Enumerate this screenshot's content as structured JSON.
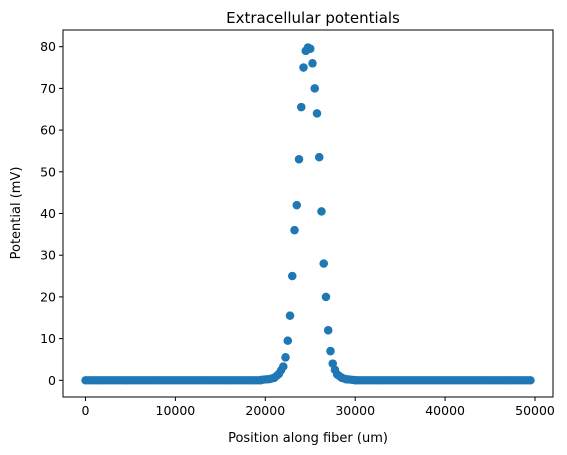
{
  "chart_data": {
    "type": "scatter",
    "title": "Extracellular potentials",
    "xlabel": "Position along fiber (um)",
    "ylabel": "Potential (mV)",
    "xlim": [
      -2500,
      52000
    ],
    "ylim": [
      -4,
      84
    ],
    "xticks": [
      0,
      10000,
      20000,
      30000,
      40000,
      50000
    ],
    "xtick_labels": [
      "0",
      "10000",
      "20000",
      "30000",
      "40000",
      "50000"
    ],
    "yticks": [
      0,
      10,
      20,
      30,
      40,
      50,
      60,
      70,
      80
    ],
    "ytick_labels": [
      "0",
      "10",
      "20",
      "30",
      "40",
      "50",
      "60",
      "70",
      "80"
    ],
    "grid": false,
    "legend": "none",
    "marker_color": "#1f77b4",
    "x_step": 250,
    "x_start": 0,
    "x_end": 49500,
    "peak_samples": [
      [
        19500,
        0.1
      ],
      [
        20500,
        0.3
      ],
      [
        21000,
        0.6
      ],
      [
        21500,
        1.5
      ],
      [
        22000,
        3.3
      ],
      [
        22250,
        5.5
      ],
      [
        22500,
        9.5
      ],
      [
        22750,
        15.5
      ],
      [
        23000,
        25
      ],
      [
        23250,
        36
      ],
      [
        23500,
        42
      ],
      [
        23750,
        53
      ],
      [
        24000,
        65.5
      ],
      [
        24250,
        75
      ],
      [
        24500,
        79
      ],
      [
        24750,
        79.8
      ],
      [
        25000,
        79.5
      ],
      [
        25250,
        76
      ],
      [
        25500,
        70
      ],
      [
        25750,
        64
      ],
      [
        26000,
        53.5
      ],
      [
        26250,
        40.5
      ],
      [
        26500,
        28
      ],
      [
        26750,
        20
      ],
      [
        27000,
        12
      ],
      [
        27250,
        7
      ],
      [
        27500,
        4
      ],
      [
        27750,
        2.5
      ],
      [
        28000,
        1.4
      ],
      [
        28500,
        0.6
      ],
      [
        29000,
        0.25
      ],
      [
        30000,
        0.05
      ]
    ]
  }
}
